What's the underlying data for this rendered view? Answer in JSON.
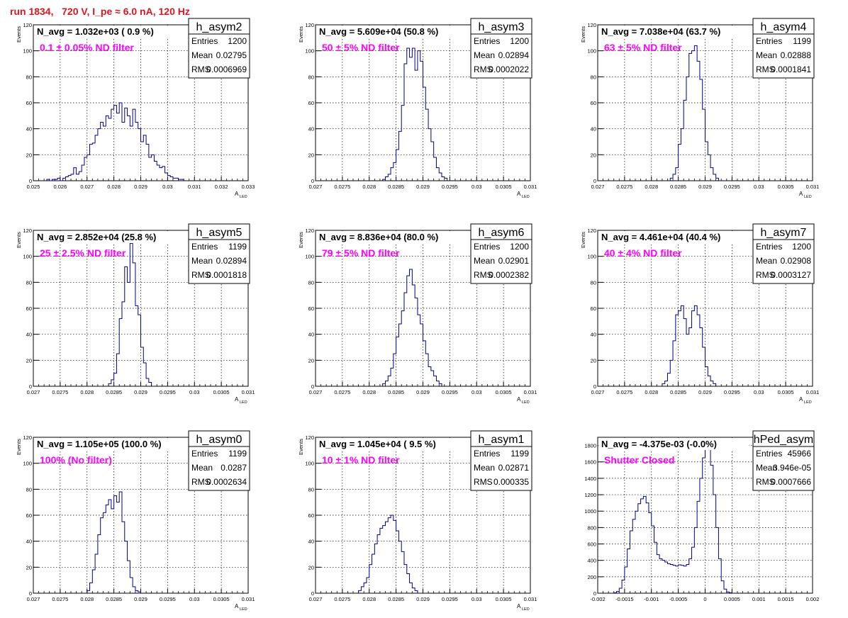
{
  "page": {
    "title": "run 1834,   720 V, I_pe ≈ 6.0 nA, 120 Hz"
  },
  "colors": {
    "title": "#e0141e",
    "line": "#00008b",
    "annotation": "#ff00ff",
    "grid": "#000000"
  },
  "stat_labels": [
    "Entries",
    "Mean",
    "RMS"
  ],
  "chart_data": [
    {
      "type": "bar",
      "name": "h_asym2",
      "nlabel": "N_avg = 1.032e+03 ( 0.9 %)",
      "annotation": "0.1 ± 0.05% ND filter",
      "stats": {
        "entries": "1200",
        "mean": "0.02795",
        "rms": "0.0006969"
      },
      "ylabel": "Events",
      "xlabel": "A",
      "xlabel_sub": "LED",
      "xlim": [
        0.025,
        0.033
      ],
      "ylim": [
        0,
        120
      ],
      "xticks": [
        "0.025",
        "0.026",
        "0.027",
        "0.028",
        "0.029",
        "0.03",
        "0.031",
        "0.032",
        "0.033"
      ],
      "yticks": [
        "0",
        "20",
        "40",
        "60",
        "80",
        "100",
        "120"
      ],
      "bin_start": 0.0255,
      "bin_width": 0.0001,
      "values": [
        1,
        0,
        1,
        1,
        2,
        0,
        2,
        3,
        4,
        5,
        10,
        5,
        7,
        12,
        18,
        20,
        28,
        29,
        35,
        40,
        45,
        42,
        50,
        48,
        55,
        58,
        52,
        60,
        45,
        56,
        50,
        42,
        55,
        45,
        40,
        30,
        35,
        28,
        18,
        20,
        15,
        12,
        10,
        11,
        6,
        4,
        3,
        2,
        2,
        1,
        1
      ]
    },
    {
      "type": "bar",
      "name": "h_asym3",
      "nlabel": "N_avg = 5.609e+04 (50.8 %)",
      "annotation": "50 ± 5% ND filter",
      "stats": {
        "entries": "1200",
        "mean": "0.02894",
        "rms": "0.0002022"
      },
      "ylabel": "Events",
      "xlabel": "A",
      "xlabel_sub": "LED",
      "xlim": [
        0.027,
        0.031
      ],
      "ylim": [
        0,
        120
      ],
      "xticks": [
        "0.027",
        "0.0275",
        "0.028",
        "0.0285",
        "0.029",
        "0.0295",
        "0.03",
        "0.0305",
        "0.031"
      ],
      "yticks": [
        "0",
        "20",
        "40",
        "60",
        "80",
        "100",
        "120"
      ],
      "bin_start": 0.02825,
      "bin_width": 5e-05,
      "values": [
        1,
        3,
        5,
        10,
        14,
        24,
        38,
        58,
        90,
        102,
        95,
        102,
        85,
        100,
        92,
        72,
        55,
        40,
        30,
        18,
        10,
        6,
        3,
        2
      ]
    },
    {
      "type": "bar",
      "name": "h_asym4",
      "nlabel": "N_avg = 7.038e+04 (63.7 %)",
      "annotation": "63 ± 5% ND filter",
      "stats": {
        "entries": "1199",
        "mean": "0.02888",
        "rms": "0.0001841"
      },
      "ylabel": "Events",
      "xlabel": "A",
      "xlabel_sub": "LED",
      "xlim": [
        0.027,
        0.031
      ],
      "ylim": [
        0,
        120
      ],
      "xticks": [
        "0.027",
        "0.0275",
        "0.028",
        "0.0285",
        "0.029",
        "0.0295",
        "0.03",
        "0.0305",
        "0.031"
      ],
      "yticks": [
        "0",
        "20",
        "40",
        "60",
        "80",
        "100",
        "120"
      ],
      "bin_start": 0.02835,
      "bin_width": 5e-05,
      "values": [
        2,
        5,
        10,
        28,
        40,
        62,
        80,
        98,
        100,
        104,
        92,
        78,
        55,
        30,
        20,
        10,
        5,
        2
      ]
    },
    {
      "type": "bar",
      "name": "h_asym5",
      "nlabel": "N_avg = 2.852e+04 (25.8 %)",
      "annotation": "25 ± 2.5% ND filter",
      "stats": {
        "entries": "1199",
        "mean": "0.02894",
        "rms": "0.0001818"
      },
      "ylabel": "Events",
      "xlabel": "A",
      "xlabel_sub": "LED",
      "xlim": [
        0.027,
        0.031
      ],
      "ylim": [
        0,
        120
      ],
      "xticks": [
        "0.027",
        "0.0275",
        "0.028",
        "0.0285",
        "0.029",
        "0.0295",
        "0.03",
        "0.0305",
        "0.031"
      ],
      "yticks": [
        "0",
        "20",
        "40",
        "60",
        "80",
        "100",
        "120"
      ],
      "bin_start": 0.0284,
      "bin_width": 5e-05,
      "values": [
        2,
        5,
        10,
        25,
        52,
        65,
        92,
        80,
        110,
        95,
        62,
        55,
        30,
        18,
        6,
        3
      ]
    },
    {
      "type": "bar",
      "name": "h_asym6",
      "nlabel": "N_avg = 8.836e+04 (80.0 %)",
      "annotation": "79 ± 5% ND filter",
      "stats": {
        "entries": "1200",
        "mean": "0.02901",
        "rms": "0.0002382"
      },
      "ylabel": "Events",
      "xlabel": "A",
      "xlabel_sub": "LED",
      "xlim": [
        0.027,
        0.031
      ],
      "ylim": [
        0,
        120
      ],
      "xticks": [
        "0.027",
        "0.0275",
        "0.028",
        "0.0285",
        "0.029",
        "0.0295",
        "0.03",
        "0.0305",
        "0.031"
      ],
      "yticks": [
        "0",
        "20",
        "40",
        "60",
        "80",
        "100",
        "120"
      ],
      "bin_start": 0.02825,
      "bin_width": 5e-05,
      "values": [
        2,
        4,
        8,
        14,
        25,
        38,
        48,
        58,
        72,
        85,
        90,
        78,
        68,
        55,
        48,
        35,
        25,
        15,
        12,
        8,
        4,
        2
      ]
    },
    {
      "type": "bar",
      "name": "h_asym7",
      "nlabel": "N_avg = 4.461e+04 (40.4 %)",
      "annotation": "40 ± 4% ND filter",
      "stats": {
        "entries": "1200",
        "mean": "0.02908",
        "rms": "0.0003127"
      },
      "ylabel": "Events",
      "xlabel": "A",
      "xlabel_sub": "LED",
      "xlim": [
        0.027,
        0.031
      ],
      "ylim": [
        0,
        120
      ],
      "xticks": [
        "0.027",
        "0.0275",
        "0.028",
        "0.0285",
        "0.029",
        "0.0295",
        "0.03",
        "0.0305",
        "0.031"
      ],
      "yticks": [
        "0",
        "20",
        "40",
        "60",
        "80",
        "100",
        "120"
      ],
      "bin_start": 0.0282,
      "bin_width": 5e-05,
      "values": [
        2,
        4,
        10,
        20,
        35,
        55,
        58,
        62,
        52,
        40,
        45,
        58,
        62,
        55,
        45,
        30,
        15,
        8,
        4,
        2
      ]
    },
    {
      "type": "bar",
      "name": "h_asym0",
      "nlabel": "N_avg = 1.105e+05 (100.0 %)",
      "annotation": "100% (No filter)",
      "stats": {
        "entries": "1199",
        "mean": "0.0287",
        "rms": "0.0002634"
      },
      "ylabel": "Events",
      "xlabel": "A",
      "xlabel_sub": "LED",
      "xlim": [
        0.027,
        0.031
      ],
      "ylim": [
        0,
        120
      ],
      "xticks": [
        "0.027",
        "0.0275",
        "0.028",
        "0.0285",
        "0.029",
        "0.0295",
        "0.03",
        "0.0305",
        "0.031"
      ],
      "yticks": [
        "0",
        "20",
        "40",
        "60",
        "80",
        "100",
        "120"
      ],
      "bin_start": 0.028,
      "bin_width": 5e-05,
      "values": [
        2,
        8,
        18,
        30,
        45,
        58,
        62,
        68,
        72,
        65,
        75,
        70,
        78,
        55,
        40,
        25,
        12,
        5,
        2,
        1
      ]
    },
    {
      "type": "bar",
      "name": "h_asym1",
      "nlabel": "N_avg = 1.045e+04 ( 9.5 %)",
      "annotation": "10 ± 1% ND filter",
      "stats": {
        "entries": "1199",
        "mean": "0.02871",
        "rms": "0.000335"
      },
      "ylabel": "Events",
      "xlabel": "A",
      "xlabel_sub": "LED",
      "xlim": [
        0.027,
        0.031
      ],
      "ylim": [
        0,
        120
      ],
      "xticks": [
        "0.027",
        "0.0275",
        "0.028",
        "0.0285",
        "0.029",
        "0.0295",
        "0.03",
        "0.0305",
        "0.031"
      ],
      "yticks": [
        "0",
        "20",
        "40",
        "60",
        "80",
        "100",
        "120"
      ],
      "bin_start": 0.0278,
      "bin_width": 5e-05,
      "values": [
        2,
        5,
        8,
        12,
        22,
        30,
        38,
        45,
        50,
        52,
        55,
        58,
        60,
        56,
        48,
        40,
        32,
        22,
        15,
        8,
        4,
        2
      ]
    },
    {
      "type": "bar",
      "name": "hPed_asym",
      "nlabel": "N_avg = -4.375e-03 (-0.0%)",
      "annotation": "Shutter Closed",
      "stats": {
        "entries": "45966",
        "mean": "3.946e-05",
        "rms": "0.0007666"
      },
      "ylabel": "",
      "xlabel": "",
      "xlabel_sub": "",
      "xlim": [
        -0.002,
        0.002
      ],
      "ylim": [
        0,
        1900
      ],
      "xticks": [
        "-0.002",
        "-0.0015",
        "-0.001",
        "-0.0005",
        "0",
        "0.0005",
        "0.001",
        "0.0015",
        "0.002"
      ],
      "yticks": [
        "0",
        "200",
        "400",
        "600",
        "800",
        "1000",
        "1200",
        "1400",
        "1600",
        "1800"
      ],
      "bin_start": -0.0017,
      "bin_width": 5e-05,
      "values": [
        5,
        20,
        60,
        160,
        320,
        540,
        760,
        900,
        1000,
        1090,
        1150,
        1180,
        1100,
        980,
        820,
        620,
        470,
        420,
        400,
        380,
        360,
        350,
        340,
        330,
        345,
        340,
        330,
        350,
        420,
        560,
        800,
        1120,
        1400,
        1650,
        1800,
        1810,
        1560,
        1200,
        800,
        420,
        150,
        50,
        15,
        5
      ]
    }
  ]
}
